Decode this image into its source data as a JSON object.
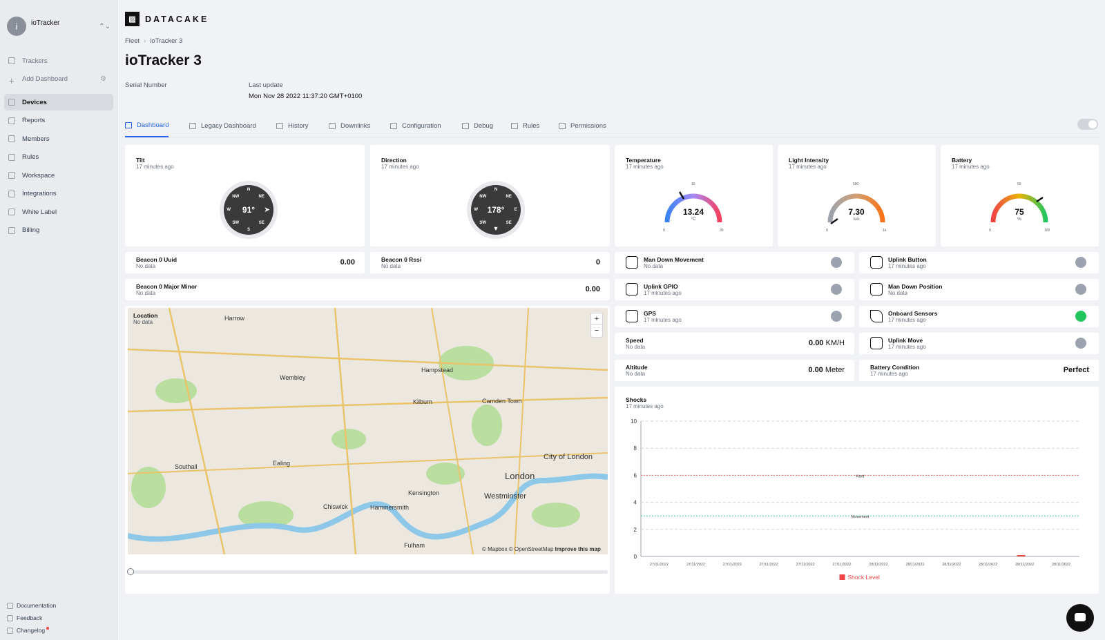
{
  "sidebar": {
    "workspace_initial": "i",
    "workspace_name": "ioTracker",
    "workspace_toggle": "⌃⌄",
    "items": [
      {
        "label": "Trackers"
      },
      {
        "label": "Add Dashboard"
      },
      {
        "label": "Devices"
      },
      {
        "label": "Reports"
      },
      {
        "label": "Members"
      },
      {
        "label": "Rules"
      },
      {
        "label": "Workspace"
      },
      {
        "label": "Integrations"
      },
      {
        "label": "White Label"
      },
      {
        "label": "Billing"
      }
    ],
    "bottom": {
      "documentation": "Documentation",
      "feedback": "Feedback",
      "changelog": "Changelog"
    }
  },
  "header": {
    "logo_text": "DATACAKE",
    "breadcrumb": {
      "fleet": "Fleet",
      "device": "ioTracker 3"
    },
    "title": "ioTracker 3",
    "serial_label": "Serial Number",
    "last_update_label": "Last update",
    "last_update_value": "Mon Nov 28 2022 11:37:20 GMT+0100"
  },
  "tabs": [
    "Dashboard",
    "Legacy Dashboard",
    "History",
    "Downlinks",
    "Configuration",
    "Debug",
    "Rules",
    "Permissions"
  ],
  "widgets": {
    "tilt": {
      "title": "Tilt",
      "sub": "17 minutes ago",
      "value": "91°",
      "n": "N",
      "s": "S",
      "e": "E",
      "w": "W",
      "ne": "NE",
      "nw": "NW",
      "se": "SE",
      "sw": "SW"
    },
    "direction": {
      "title": "Direction",
      "sub": "17 minutes ago",
      "value": "178°",
      "n": "N",
      "s": "S",
      "e": "E",
      "w": "W",
      "ne": "NE",
      "nw": "NW",
      "se": "SE",
      "sw": "SW"
    },
    "temperature": {
      "title": "Temperature",
      "sub": "17 minutes ago",
      "value": "13.24",
      "unit": "°C",
      "min": "0",
      "mid": "10",
      "max": "30"
    },
    "light": {
      "title": "Light Intensity",
      "sub": "17 minutes ago",
      "value": "7.30",
      "unit": "lux",
      "min": "0",
      "mid": "500",
      "max": "1k"
    },
    "battery": {
      "title": "Battery",
      "sub": "17 minutes ago",
      "value": "75",
      "unit": "%",
      "min": "0",
      "mid": "50",
      "max": "100"
    },
    "beacon_uuid": {
      "title": "Beacon 0 Uuid",
      "sub": "No data",
      "value": "0.00"
    },
    "beacon_rssi": {
      "title": "Beacon 0 Rssi",
      "sub": "No data",
      "value": "0"
    },
    "beacon_major": {
      "title": "Beacon 0 Major Minor",
      "sub": "No data",
      "value": "0.00"
    },
    "man_down_movement": {
      "title": "Man Down Movement",
      "sub": "No data"
    },
    "uplink_button": {
      "title": "Uplink Button",
      "sub": "17 minutes ago"
    },
    "uplink_gpio": {
      "title": "Uplink GPIO",
      "sub": "17 minutes ago"
    },
    "man_down_position": {
      "title": "Man Down Position",
      "sub": "No data"
    },
    "gps": {
      "title": "GPS",
      "sub": "17 minutes ago"
    },
    "onboard_sensors": {
      "title": "Onboard Sensors",
      "sub": "17 minutes ago"
    },
    "speed": {
      "title": "Speed",
      "sub": "No data",
      "value": "0.00",
      "unit": "KM/H"
    },
    "uplink_move": {
      "title": "Uplink Move",
      "sub": "17 minutes ago"
    },
    "altitude": {
      "title": "Altitude",
      "sub": "No data",
      "value": "0.00",
      "unit": "Meter"
    },
    "battery_condition": {
      "title": "Battery Condition",
      "sub": "17 minutes ago",
      "value": "Perfect"
    },
    "location": {
      "title": "Location",
      "sub": "No data"
    },
    "shocks": {
      "title": "Shocks",
      "sub": "17 minutes ago"
    }
  },
  "map": {
    "attribution": "© Mapbox © OpenStreetMap",
    "improve": "Improve this map",
    "zoom_in": "+",
    "zoom_out": "−",
    "places": [
      "Harrow",
      "Wembley",
      "Hampstead",
      "Kilburn",
      "Camden Town",
      "Southall",
      "Ealing",
      "London",
      "City of London",
      "Westminster",
      "Kensington",
      "Chiswick",
      "Hammersmith",
      "Fulham"
    ]
  },
  "chart_data": {
    "type": "bar",
    "title": "",
    "xlabel": "",
    "ylabel": "",
    "ylim": [
      0,
      10
    ],
    "yticks": [
      0,
      2,
      4,
      6,
      8,
      10
    ],
    "categories": [
      "27/11/2022",
      "27/11/2022",
      "27/11/2022",
      "27/11/2022",
      "27/11/2022",
      "27/11/2022",
      "28/11/2022",
      "28/11/2022",
      "28/11/2022",
      "28/11/2022",
      "28/11/2022",
      "28/11/2022"
    ],
    "series": [
      {
        "name": "Shock Level",
        "color": "#ef4444",
        "values": [
          0,
          0,
          0,
          0,
          0,
          0,
          0,
          0,
          0,
          0,
          0.1,
          0
        ]
      }
    ],
    "thresholds": [
      {
        "label": "Hard",
        "value": 6,
        "color": "#ef4444"
      },
      {
        "label": "Movement",
        "value": 3,
        "color": "#10b981"
      }
    ],
    "grid": true,
    "legend": "bottom"
  }
}
